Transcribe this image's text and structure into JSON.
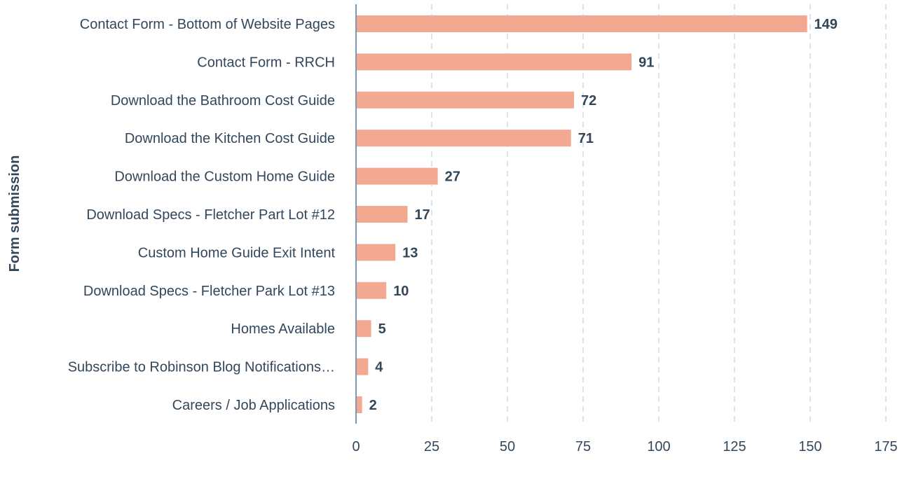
{
  "chart_data": {
    "type": "bar",
    "orientation": "horizontal",
    "ylabel": "Form submission",
    "xlabel": "",
    "categories": [
      "Contact Form - Bottom of Website Pages",
      "Contact Form - RRCH",
      "Download the Bathroom Cost Guide",
      "Download the Kitchen Cost Guide",
      "Download the Custom Home Guide",
      "Download Specs - Fletcher Part Lot #12",
      "Custom Home Guide Exit Intent",
      "Download Specs - Fletcher Park Lot #13",
      "Homes Available",
      "Subscribe to Robinson Blog Notifications…",
      "Careers / Job Applications"
    ],
    "values": [
      149,
      91,
      72,
      71,
      27,
      17,
      13,
      10,
      5,
      4,
      2
    ],
    "xlim": [
      0,
      175
    ],
    "xticks": [
      0,
      25,
      50,
      75,
      100,
      125,
      150,
      175
    ],
    "grid": "vertical dashed",
    "legend": "none",
    "bar_color": "#f2a891",
    "axis_color": "#7c98b6",
    "grid_color": "#dfe3eb",
    "text_color": "#33475b"
  }
}
